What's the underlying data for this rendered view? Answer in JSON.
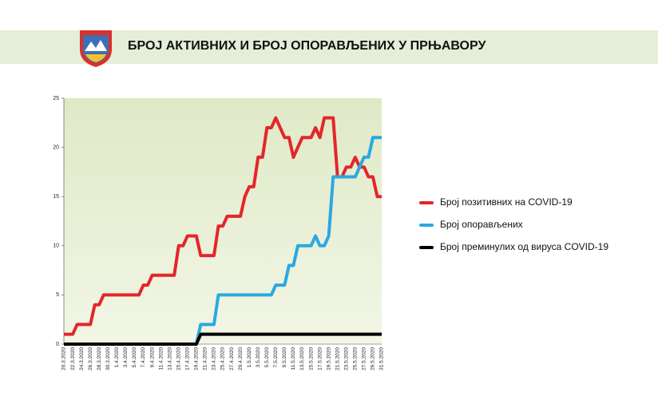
{
  "chart_data": {
    "type": "line",
    "title": "БРОЈ АКТИВНИХ И БРОЈ ОПОРАВЉЕНИХ У ПРЊАВОРУ",
    "categories": [
      "20.3.2020",
      null,
      "22.3.2020",
      null,
      "24.3.2020",
      null,
      "26.3.2020",
      null,
      "28.3.2020",
      null,
      "30.3.2020",
      null,
      "1.4.2020",
      null,
      "3.4.2020",
      null,
      "5.4.2020",
      null,
      "7.4.2020",
      null,
      "9.4.2020",
      null,
      "11.4.2020",
      null,
      "13.4.2020",
      null,
      "15.4.2020",
      null,
      "17.4.2020",
      null,
      "19.4.2020",
      null,
      "21.4.2020",
      null,
      "23.4.2020",
      null,
      "25.4.2020",
      null,
      "27.4.2020",
      null,
      "29.4.2020",
      null,
      "1.5.2020",
      null,
      "3.5.2020",
      null,
      "5.5.2020",
      null,
      "7.5.2020",
      null,
      "9.5.2020",
      null,
      "11.5.2020",
      null,
      "13.5.2020",
      null,
      "15.5.2020",
      null,
      "17.5.2020",
      null,
      "19.5.2020",
      null,
      "21.5.2020",
      null,
      "23.5.2020",
      null,
      "25.5.2020",
      null,
      "27.5.2020",
      null,
      "29.5.2020",
      null,
      "31.5.2020"
    ],
    "series": [
      {
        "name": "Број позитивних на COVID-19",
        "color": "#e3262b",
        "values": [
          1,
          1,
          1,
          2,
          2,
          2,
          2,
          4,
          4,
          5,
          5,
          5,
          5,
          5,
          5,
          5,
          5,
          5,
          6,
          6,
          7,
          7,
          7,
          7,
          7,
          7,
          10,
          10,
          11,
          11,
          11,
          9,
          9,
          9,
          9,
          12,
          12,
          13,
          13,
          13,
          13,
          15,
          16,
          16,
          19,
          19,
          22,
          22,
          23,
          22,
          21,
          21,
          19,
          20,
          21,
          21,
          21,
          22,
          21,
          23,
          23,
          23,
          17,
          17,
          18,
          18,
          19,
          18,
          18,
          17,
          17,
          15,
          15
        ]
      },
      {
        "name": "Број опорављених",
        "color": "#2aa9e0",
        "values": [
          0,
          0,
          0,
          0,
          0,
          0,
          0,
          0,
          0,
          0,
          0,
          0,
          0,
          0,
          0,
          0,
          0,
          0,
          0,
          0,
          0,
          0,
          0,
          0,
          0,
          0,
          0,
          0,
          0,
          0,
          0,
          2,
          2,
          2,
          2,
          5,
          5,
          5,
          5,
          5,
          5,
          5,
          5,
          5,
          5,
          5,
          5,
          5,
          6,
          6,
          6,
          8,
          8,
          10,
          10,
          10,
          10,
          11,
          10,
          10,
          11,
          17,
          17,
          17,
          17,
          17,
          17,
          18,
          19,
          19,
          21,
          21,
          21
        ]
      },
      {
        "name": "Број преминулих од вируса COVID-19",
        "color": "#000000",
        "values": [
          0,
          0,
          0,
          0,
          0,
          0,
          0,
          0,
          0,
          0,
          0,
          0,
          0,
          0,
          0,
          0,
          0,
          0,
          0,
          0,
          0,
          0,
          0,
          0,
          0,
          0,
          0,
          0,
          0,
          0,
          0,
          1,
          1,
          1,
          1,
          1,
          1,
          1,
          1,
          1,
          1,
          1,
          1,
          1,
          1,
          1,
          1,
          1,
          1,
          1,
          1,
          1,
          1,
          1,
          1,
          1,
          1,
          1,
          1,
          1,
          1,
          1,
          1,
          1,
          1,
          1,
          1,
          1,
          1,
          1,
          1,
          1,
          1
        ]
      }
    ],
    "ylim": [
      0,
      25
    ],
    "yticks": [
      0,
      5,
      10,
      15,
      20,
      25
    ],
    "legend": "right"
  }
}
